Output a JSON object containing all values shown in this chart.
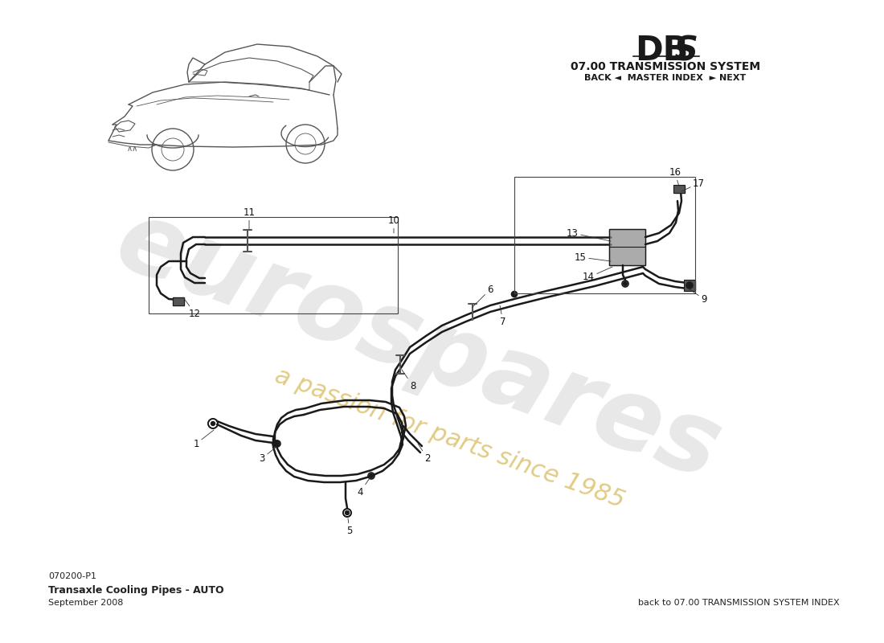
{
  "title_system": "07.00 TRANSMISSION SYSTEM",
  "nav_text": "BACK ◄  MASTER INDEX  ► NEXT",
  "part_number": "070200-P1",
  "part_name": "Transaxle Cooling Pipes - AUTO",
  "date": "September 2008",
  "bottom_right_text": "back to 07.00 TRANSMISSION SYSTEM INDEX",
  "bg_color": "#ffffff",
  "line_color": "#1a1a1a",
  "pipe_lw": 1.8,
  "thin_lw": 1.0,
  "watermark_color": "#c8c8c8",
  "passion_color": "#c8a020"
}
